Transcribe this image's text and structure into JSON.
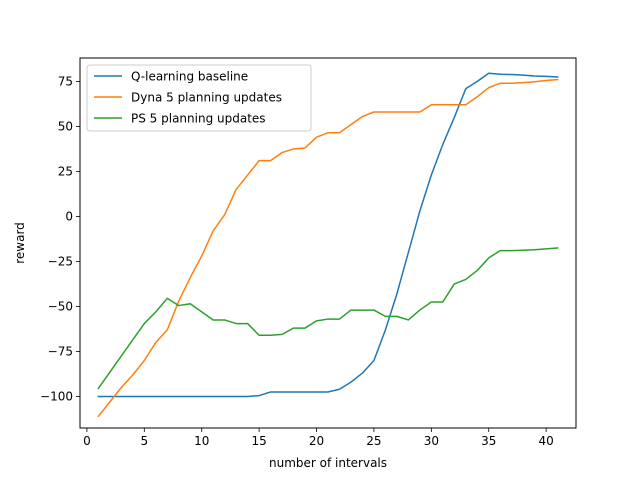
{
  "chart_data": {
    "type": "line",
    "title": "",
    "xlabel": "number of intervals",
    "ylabel": "reward",
    "xlim": [
      -0.6,
      42.6
    ],
    "ylim": [
      -117.5,
      88
    ],
    "xticks": [
      0,
      5,
      10,
      15,
      20,
      25,
      30,
      35,
      40
    ],
    "yticks": [
      -100,
      -75,
      -50,
      -25,
      0,
      25,
      50,
      75
    ],
    "xtick_labels": [
      "0",
      "5",
      "10",
      "15",
      "20",
      "25",
      "30",
      "35",
      "40"
    ],
    "ytick_labels": [
      "−100",
      "−75",
      "−50",
      "−25",
      "0",
      "25",
      "50",
      "75"
    ],
    "grid": false,
    "legend_position": "upper-left",
    "x": [
      1,
      2,
      3,
      4,
      5,
      6,
      7,
      8,
      9,
      10,
      11,
      12,
      13,
      14,
      15,
      16,
      17,
      18,
      19,
      20,
      21,
      22,
      23,
      24,
      25,
      26,
      27,
      28,
      29,
      30,
      31,
      32,
      33,
      34,
      35,
      36,
      37,
      38,
      39,
      40,
      41
    ],
    "series": [
      {
        "name": "Q-learning baseline",
        "color": "#1f77b4",
        "values": [
          -100,
          -100,
          -100,
          -100,
          -100,
          -100,
          -100,
          -100,
          -100,
          -100,
          -100,
          -100,
          -100,
          -100,
          -99.5,
          -97.5,
          -97.5,
          -97.5,
          -97.5,
          -97.5,
          -97.5,
          -96,
          -92,
          -87,
          -80,
          -63,
          -43,
          -20,
          3,
          23,
          40,
          55,
          71,
          75,
          79.5,
          79,
          78.8,
          78.5,
          78,
          77.8,
          77.5
        ]
      },
      {
        "name": "Dyna 5 planning updates",
        "color": "#ff7f0e",
        "values": [
          -111,
          -103,
          -95,
          -88,
          -80,
          -70,
          -63,
          -47,
          -34,
          -22,
          -8,
          1,
          15,
          23,
          31,
          31,
          35.5,
          37.5,
          38,
          44,
          46.5,
          46.5,
          51,
          55.5,
          58,
          58,
          58,
          58,
          58,
          62,
          62,
          62,
          62,
          66.5,
          71.5,
          74,
          74,
          74.3,
          74.8,
          75.5,
          76
        ]
      },
      {
        "name": "PS 5 planning updates",
        "color": "#2ca02c",
        "values": [
          -95.5,
          -86.5,
          -77.5,
          -68.5,
          -59.5,
          -53,
          -45.5,
          -49.5,
          -48.5,
          -53,
          -57.5,
          -57.5,
          -59.5,
          -59.5,
          -66,
          -66,
          -65.5,
          -62,
          -62,
          -58,
          -57,
          -57,
          -52,
          -52,
          -52,
          -55.5,
          -55.5,
          -57.5,
          -52,
          -47.5,
          -47.5,
          -37.5,
          -35,
          -30,
          -23,
          -19,
          -19,
          -18.8,
          -18.5,
          -18,
          -17.5
        ]
      }
    ]
  }
}
